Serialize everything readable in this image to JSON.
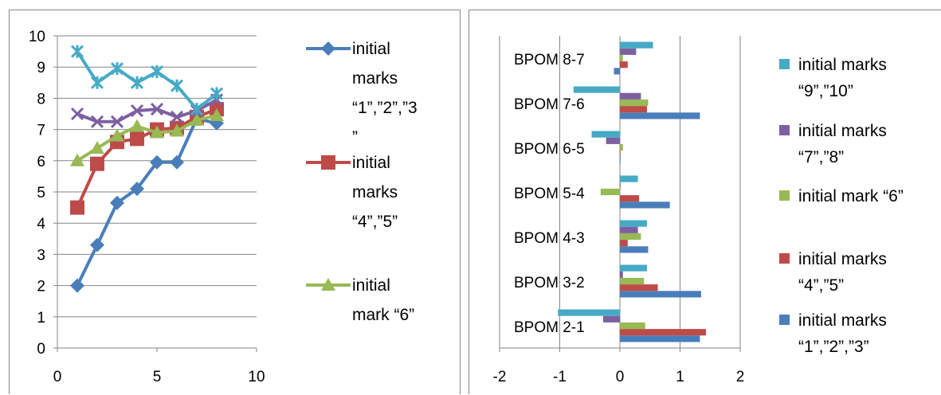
{
  "chart_data": [
    {
      "type": "line",
      "title": "",
      "xlabel": "",
      "ylabel": "",
      "xlim": [
        0,
        10
      ],
      "ylim": [
        0,
        10
      ],
      "xticks": [
        "0",
        "5",
        "10"
      ],
      "yticks": [
        "0",
        "1",
        "2",
        "3",
        "4",
        "5",
        "6",
        "7",
        "8",
        "9",
        "10"
      ],
      "grid": "horizontal",
      "legend_position": "right",
      "series": [
        {
          "name": "initial marks “1”,”2”,”3”",
          "legend_lines": [
            "initial",
            "marks",
            "“1”,”2”,”3",
            "”"
          ],
          "color": "#4a7ebb",
          "marker": "diamond",
          "x": [
            1,
            2,
            3,
            4,
            5,
            6,
            7,
            8
          ],
          "y": [
            2.0,
            3.3,
            4.65,
            5.1,
            5.95,
            5.95,
            7.35,
            7.2
          ]
        },
        {
          "name": "initial marks “4”,”5”",
          "legend_lines": [
            "initial",
            "marks",
            "“4”,”5”"
          ],
          "color": "#be4b48",
          "marker": "square",
          "x": [
            1,
            2,
            3,
            4,
            5,
            6,
            7,
            8
          ],
          "y": [
            4.5,
            5.9,
            6.6,
            6.7,
            7.0,
            7.05,
            7.4,
            7.65
          ]
        },
        {
          "name": "initial mark “6”",
          "legend_lines": [
            "initial",
            "mark “6”"
          ],
          "color": "#98b954",
          "marker": "triangle",
          "x": [
            1,
            2,
            3,
            4,
            5,
            6,
            7,
            8
          ],
          "y": [
            6.0,
            6.4,
            6.8,
            7.1,
            6.9,
            6.95,
            7.3,
            7.45
          ]
        },
        {
          "name": "initial marks “7”,”8”",
          "legend_lines": [],
          "color": "#7d60a0",
          "marker": "x",
          "x": [
            1,
            2,
            3,
            4,
            5,
            6,
            7,
            8
          ],
          "y": [
            7.5,
            7.25,
            7.25,
            7.6,
            7.65,
            7.4,
            7.6,
            7.95
          ]
        },
        {
          "name": "initial marks “9”,”10”",
          "legend_lines": [],
          "color": "#46aac5",
          "marker": "star",
          "x": [
            1,
            2,
            3,
            4,
            5,
            6,
            7,
            8
          ],
          "y": [
            9.5,
            8.5,
            8.95,
            8.5,
            8.85,
            8.4,
            7.65,
            8.15
          ]
        }
      ]
    },
    {
      "type": "bar",
      "orientation": "horizontal",
      "title": "",
      "xlabel": "",
      "ylabel": "",
      "xlim": [
        -2,
        2
      ],
      "xticks": [
        "-2",
        "-1",
        "0",
        "1",
        "2"
      ],
      "grid": "vertical",
      "legend_position": "right",
      "categories": [
        "BPOM 2-1",
        "BPOM 3-2",
        "BPOM 4-3",
        "BPOM 5-4",
        "BPOM 6-5",
        "BPOM 7-6",
        "BPOM 8-7"
      ],
      "series": [
        {
          "name": "initial marks “1”,”2”,”3”",
          "legend_lines": [
            "initial marks",
            "“1”,”2”,”3”"
          ],
          "color": "#4a7ebb",
          "values": [
            1.33,
            1.35,
            0.47,
            0.83,
            0.0,
            1.33,
            -0.1
          ]
        },
        {
          "name": "initial marks “4”,”5”",
          "legend_lines": [
            "initial marks",
            "“4”,”5”"
          ],
          "color": "#be4b48",
          "values": [
            1.43,
            0.63,
            0.13,
            0.32,
            0.0,
            0.45,
            0.13
          ]
        },
        {
          "name": "initial mark “6”",
          "legend_lines": [
            "initial mark “6”"
          ],
          "color": "#98b954",
          "values": [
            0.42,
            0.4,
            0.35,
            -0.32,
            0.05,
            0.47,
            0.05
          ]
        },
        {
          "name": "initial marks “7”,”8”",
          "legend_lines": [
            "initial marks",
            "“7”,”8”"
          ],
          "color": "#7d60a0",
          "values": [
            -0.28,
            0.05,
            0.3,
            0.0,
            -0.23,
            0.35,
            0.27
          ]
        },
        {
          "name": "initial marks “9”,”10”",
          "legend_lines": [
            "initial marks",
            "“9”,”10”"
          ],
          "color": "#46aac5",
          "values": [
            -1.03,
            0.45,
            0.45,
            0.3,
            -0.47,
            -0.77,
            0.55
          ]
        }
      ]
    }
  ]
}
